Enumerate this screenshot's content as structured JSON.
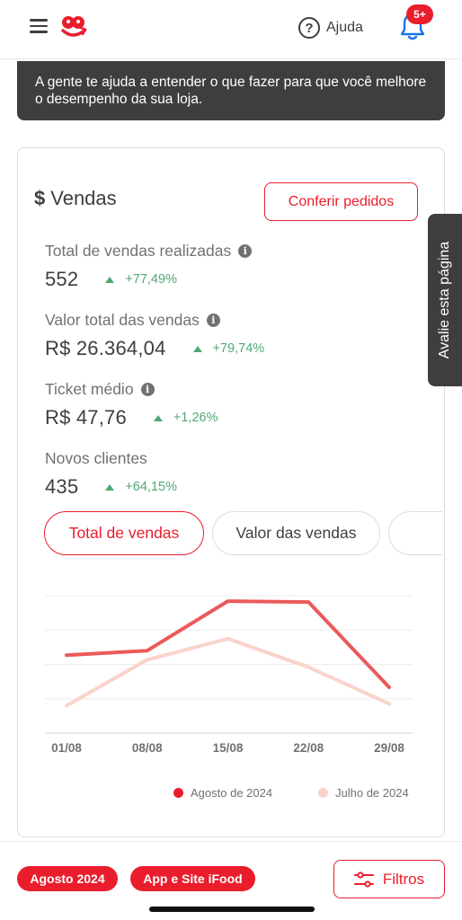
{
  "header": {
    "menu_icon": "hamburger-menu-icon",
    "logo_icon": "ifood-logo",
    "help_label": "Ajuda",
    "notifications_badge": "5+"
  },
  "banner": {
    "text": "A gente te ajuda a entender o que fazer para que você melhore o desempenho da sua loja."
  },
  "sales_card": {
    "title": "Vendas",
    "title_icon": "dollar-icon",
    "action_label": "Conferir pedidos",
    "metrics": [
      {
        "label": "Total de vendas realizadas",
        "value": "552",
        "delta": "+77,49%",
        "info": true
      },
      {
        "label": "Valor total das vendas",
        "value": "R$ 26.364,04",
        "delta": "+79,74%",
        "info": true
      },
      {
        "label": "Ticket médio",
        "value": "R$ 47,76",
        "delta": "+1,26%",
        "info": true
      },
      {
        "label": "Novos clientes",
        "value": "435",
        "delta": "+64,15%",
        "info": false
      }
    ],
    "tabs": [
      {
        "label": "Total de vendas",
        "selected": true
      },
      {
        "label": "Valor das vendas",
        "selected": false
      }
    ]
  },
  "chart_data": {
    "type": "line",
    "x": [
      "01/08",
      "08/08",
      "15/08",
      "22/08",
      "29/08"
    ],
    "series": [
      {
        "name": "Agosto de 2024",
        "color": "#ea5a5a",
        "values": [
          105,
          110,
          164,
          163,
          70
        ]
      },
      {
        "name": "Julho de 2024",
        "color": "#f9d3cc",
        "values": [
          50,
          100,
          123,
          92,
          52
        ]
      }
    ],
    "ylim": [
      20,
      170
    ],
    "grid": true,
    "legend_position": "bottom-right"
  },
  "side_tab": {
    "label": "Avalie esta página"
  },
  "footer": {
    "filter_pills": [
      "Agosto 2024",
      "App e Site iFood"
    ],
    "filters_label": "Filtros",
    "filters_icon": "sliders-icon"
  },
  "colors": {
    "brand_red": "#ea1d2c",
    "dark": "#3f3e3e",
    "positive": "#50a773"
  }
}
